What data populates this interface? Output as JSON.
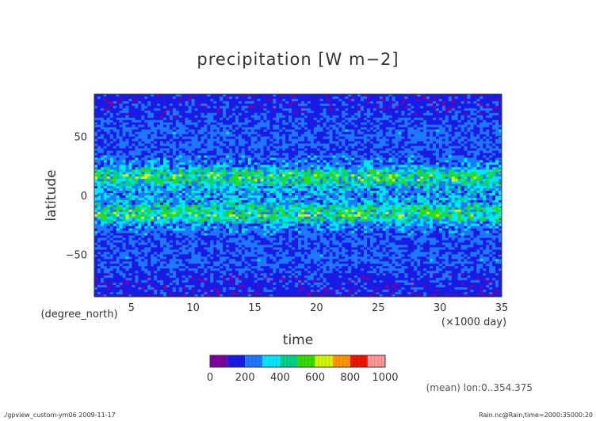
{
  "chart_data": {
    "type": "heatmap",
    "title": "precipitation [W m−2]",
    "xlabel": "time",
    "ylabel": "latitude",
    "x_unit": "(×1000 day)",
    "y_unit": "(degree_north)",
    "xlim": [
      2,
      35
    ],
    "ylim": [
      -85.8,
      85.8
    ],
    "x_ticks": [
      5,
      10,
      15,
      20,
      25,
      30,
      35
    ],
    "x_tick_labels": [
      "5",
      "10",
      "15",
      "20",
      "25",
      "30",
      "35"
    ],
    "y_ticks": [
      50,
      0,
      -50
    ],
    "y_tick_labels": [
      "50",
      "0",
      "−50"
    ],
    "grid": false,
    "latitude_profile": {
      "latitude": [
        -85,
        -70,
        -55,
        -45,
        -35,
        -25,
        -18,
        -12,
        -6,
        0,
        6,
        12,
        18,
        25,
        35,
        45,
        55,
        70,
        85
      ],
      "mean_value": [
        150,
        165,
        210,
        205,
        200,
        260,
        470,
        430,
        300,
        280,
        310,
        420,
        460,
        255,
        200,
        205,
        210,
        170,
        150
      ]
    },
    "colorbar": {
      "range": [
        0,
        1000
      ],
      "ticks": [
        0,
        200,
        400,
        600,
        800,
        1000
      ],
      "tick_labels": [
        "0",
        "200",
        "400",
        "600",
        "800",
        "1000"
      ],
      "bins": [
        {
          "from": 0,
          "to": 100,
          "color": "#7d00a0"
        },
        {
          "from": 100,
          "to": 200,
          "color": "#1a1ae6"
        },
        {
          "from": 200,
          "to": 300,
          "color": "#1e78ff"
        },
        {
          "from": 300,
          "to": 400,
          "color": "#00e6ff"
        },
        {
          "from": 400,
          "to": 500,
          "color": "#00d28c"
        },
        {
          "from": 500,
          "to": 600,
          "color": "#32dc00"
        },
        {
          "from": 600,
          "to": 700,
          "color": "#d2f500"
        },
        {
          "from": 700,
          "to": 800,
          "color": "#ff9600"
        },
        {
          "from": 800,
          "to": 900,
          "color": "#f01400"
        },
        {
          "from": 900,
          "to": 1000,
          "color": "#ff9696"
        }
      ]
    }
  },
  "annotations": {
    "mean_note": "(mean) lon:0..354.375",
    "footer_left": "./gpview_custom-ym06   2009-11-17",
    "footer_right": "Rain.nc@Rain,time=2000:35000:20"
  }
}
